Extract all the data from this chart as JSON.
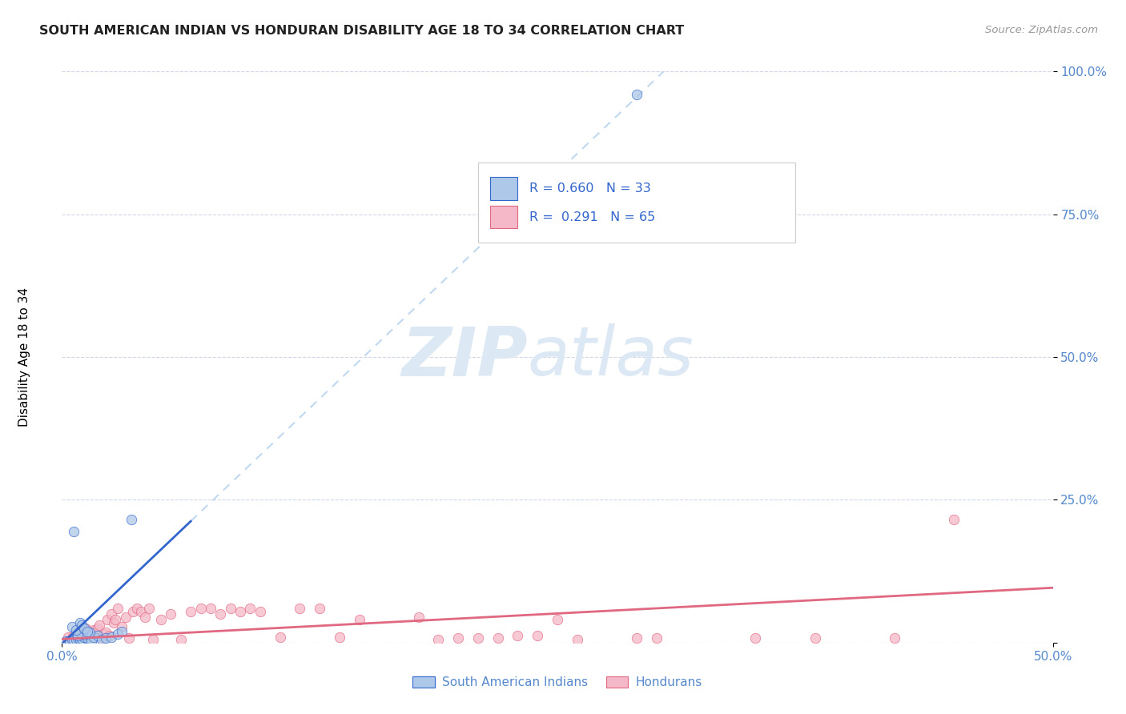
{
  "title": "SOUTH AMERICAN INDIAN VS HONDURAN DISABILITY AGE 18 TO 34 CORRELATION CHART",
  "source": "Source: ZipAtlas.com",
  "ylabel": "Disability Age 18 to 34",
  "xlim": [
    0.0,
    0.5
  ],
  "ylim": [
    0.0,
    1.0
  ],
  "blue_R": 0.66,
  "blue_N": 33,
  "pink_R": 0.291,
  "pink_N": 65,
  "blue_color": "#adc8e8",
  "pink_color": "#f5b8c8",
  "blue_line_color": "#3366cc",
  "pink_line_color": "#e06880",
  "trend_dash_color": "#c0d8f0",
  "legend_label_blue": "South American Indians",
  "legend_label_pink": "Hondurans",
  "blue_scatter_x": [
    0.002,
    0.003,
    0.004,
    0.005,
    0.006,
    0.007,
    0.008,
    0.009,
    0.01,
    0.011,
    0.012,
    0.013,
    0.015,
    0.016,
    0.018,
    0.02,
    0.022,
    0.025,
    0.028,
    0.03,
    0.012,
    0.014,
    0.01,
    0.008,
    0.006,
    0.005,
    0.007,
    0.009,
    0.01,
    0.011,
    0.013,
    0.035,
    0.29
  ],
  "blue_scatter_y": [
    0.002,
    0.003,
    0.003,
    0.005,
    0.004,
    0.006,
    0.008,
    0.005,
    0.007,
    0.01,
    0.012,
    0.008,
    0.003,
    0.01,
    0.012,
    0.005,
    0.008,
    0.01,
    0.015,
    0.02,
    0.015,
    0.018,
    0.015,
    0.012,
    0.195,
    0.028,
    0.022,
    0.035,
    0.03,
    0.025,
    0.02,
    0.215,
    0.96
  ],
  "pink_scatter_x": [
    0.003,
    0.005,
    0.006,
    0.007,
    0.008,
    0.009,
    0.01,
    0.011,
    0.012,
    0.013,
    0.014,
    0.015,
    0.016,
    0.017,
    0.018,
    0.019,
    0.02,
    0.021,
    0.022,
    0.023,
    0.024,
    0.025,
    0.026,
    0.027,
    0.028,
    0.03,
    0.032,
    0.034,
    0.036,
    0.038,
    0.04,
    0.042,
    0.044,
    0.046,
    0.05,
    0.055,
    0.06,
    0.065,
    0.07,
    0.075,
    0.08,
    0.085,
    0.09,
    0.095,
    0.1,
    0.11,
    0.12,
    0.13,
    0.14,
    0.15,
    0.18,
    0.19,
    0.2,
    0.21,
    0.22,
    0.23,
    0.24,
    0.25,
    0.26,
    0.29,
    0.3,
    0.35,
    0.38,
    0.42,
    0.45
  ],
  "pink_scatter_y": [
    0.01,
    0.008,
    0.012,
    0.015,
    0.018,
    0.008,
    0.012,
    0.02,
    0.025,
    0.01,
    0.015,
    0.018,
    0.022,
    0.012,
    0.025,
    0.03,
    0.008,
    0.015,
    0.018,
    0.04,
    0.012,
    0.05,
    0.035,
    0.04,
    0.06,
    0.028,
    0.045,
    0.008,
    0.055,
    0.06,
    0.055,
    0.045,
    0.06,
    0.005,
    0.04,
    0.05,
    0.005,
    0.055,
    0.06,
    0.06,
    0.05,
    0.06,
    0.055,
    0.06,
    0.055,
    0.01,
    0.06,
    0.06,
    0.01,
    0.04,
    0.045,
    0.005,
    0.008,
    0.008,
    0.008,
    0.012,
    0.012,
    0.04,
    0.005,
    0.008,
    0.008,
    0.008,
    0.008,
    0.008,
    0.215
  ],
  "blue_trend_slope": 3.3,
  "blue_trend_intercept": -0.002,
  "blue_trend_solid_xlim": [
    0.0,
    0.065
  ],
  "blue_trend_dash_xlim": [
    0.065,
    0.32
  ],
  "pink_trend_slope": 0.18,
  "pink_trend_intercept": 0.006
}
